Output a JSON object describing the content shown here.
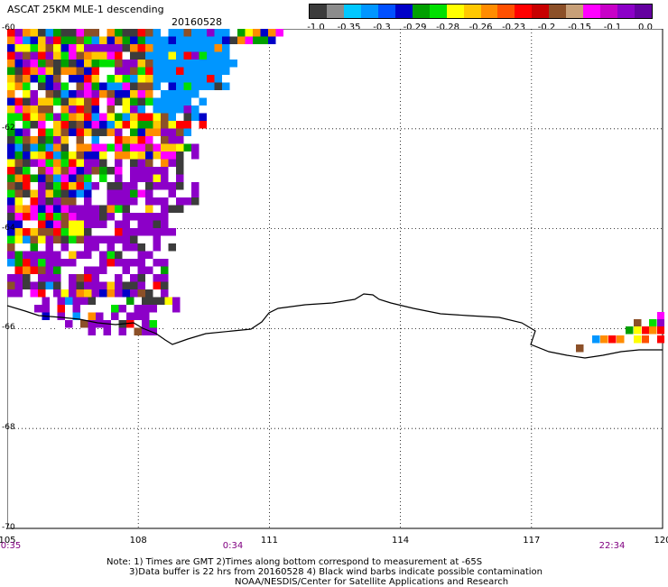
{
  "header": {
    "title": "ASCAT 25KM MLE-1 descending",
    "date": "20160528"
  },
  "colorbar": {
    "colors": [
      "#3c3c3c",
      "#8c8c8c",
      "#00c8ff",
      "#0096ff",
      "#0050ff",
      "#0000c8",
      "#00a000",
      "#00e000",
      "#ffff00",
      "#ffc800",
      "#ff8c00",
      "#ff5000",
      "#ff0000",
      "#c80000",
      "#8c5028",
      "#c8a078",
      "#ff00ff",
      "#c800c8",
      "#8c00c8",
      "#6400a0"
    ],
    "labels": [
      "-1.0",
      "-0.35",
      "-0.3",
      "-0.29",
      "-0.28",
      "-0.26",
      "-0.23",
      "-0.2",
      "-0.15",
      "-0.1",
      "0.0"
    ]
  },
  "axes": {
    "lat_ticks": [
      "-60",
      "-62",
      "-64",
      "-66",
      "-68",
      "-70"
    ],
    "lon_ticks": [
      "105",
      "108",
      "111",
      "114",
      "117",
      "120"
    ],
    "time_labels": [
      "0:35",
      "0:34",
      "22:34"
    ]
  },
  "notes": [
    "Note: 1) Times are GMT 2)Times along bottom correspond to measurement at -65S",
    "3)Data buffer is 22 hrs from 20160528 4) Black wind barbs indicate possible contamination",
    "NOAA/NESDIS/Center for Satellite Applications and Research"
  ]
}
